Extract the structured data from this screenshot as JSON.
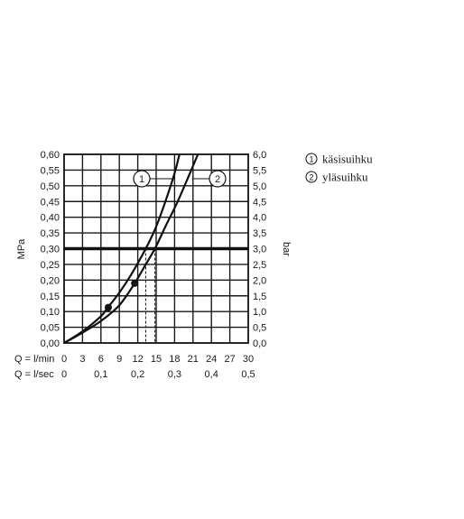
{
  "chart_data": {
    "type": "line",
    "xlabel_lmin": "Q = l/min",
    "xlabel_lsec": "Q = l/sec",
    "x_ticks_lmin": [
      "0",
      "3",
      "6",
      "9",
      "12",
      "15",
      "18",
      "21",
      "24",
      "27",
      "30"
    ],
    "x_ticks_lsec": [
      "0",
      "0,1",
      "0,2",
      "0,3",
      "0,4",
      "0,5"
    ],
    "xlim_lmin": [
      0,
      30
    ],
    "ylabel_left": "MPa",
    "ylabel_right": "bar",
    "y_ticks_left": [
      "0,00",
      "0,05",
      "0,10",
      "0,15",
      "0,20",
      "0,25",
      "0,30",
      "0,35",
      "0,40",
      "0,45",
      "0,50",
      "0,55",
      "0,60"
    ],
    "y_ticks_right": [
      "0,0",
      "0,5",
      "1,0",
      "1,5",
      "2,0",
      "2,5",
      "3,0",
      "3,5",
      "4,0",
      "4,5",
      "5,0",
      "5,5",
      "6,0"
    ],
    "ylim_mpa": [
      0,
      0.6
    ],
    "grid": true,
    "reference_line_mpa": 0.3,
    "series": [
      {
        "marker": "1",
        "name": "käsisuihku",
        "points": [
          [
            0,
            0
          ],
          [
            3,
            0.037
          ],
          [
            6,
            0.085
          ],
          [
            7,
            0.11
          ],
          [
            9,
            0.16
          ],
          [
            11,
            0.22
          ],
          [
            13.3,
            0.3
          ],
          [
            15,
            0.37
          ],
          [
            16.5,
            0.45
          ],
          [
            18,
            0.54
          ],
          [
            18.8,
            0.6
          ]
        ],
        "dot": [
          7.2,
          0.113
        ],
        "flow_at_reference": 13.3
      },
      {
        "marker": "2",
        "name": "yläsuihku",
        "points": [
          [
            0,
            0
          ],
          [
            3,
            0.033
          ],
          [
            6,
            0.07
          ],
          [
            9,
            0.12
          ],
          [
            11.5,
            0.19
          ],
          [
            13,
            0.24
          ],
          [
            14.8,
            0.3
          ],
          [
            16.5,
            0.37
          ],
          [
            18.5,
            0.45
          ],
          [
            20.5,
            0.54
          ],
          [
            21.8,
            0.6
          ]
        ],
        "dot": [
          11.5,
          0.19
        ],
        "flow_at_reference": 14.8
      }
    ]
  },
  "legend": [
    {
      "number": "1",
      "label": "käsisuihku"
    },
    {
      "number": "2",
      "label": "yläsuihku"
    }
  ]
}
